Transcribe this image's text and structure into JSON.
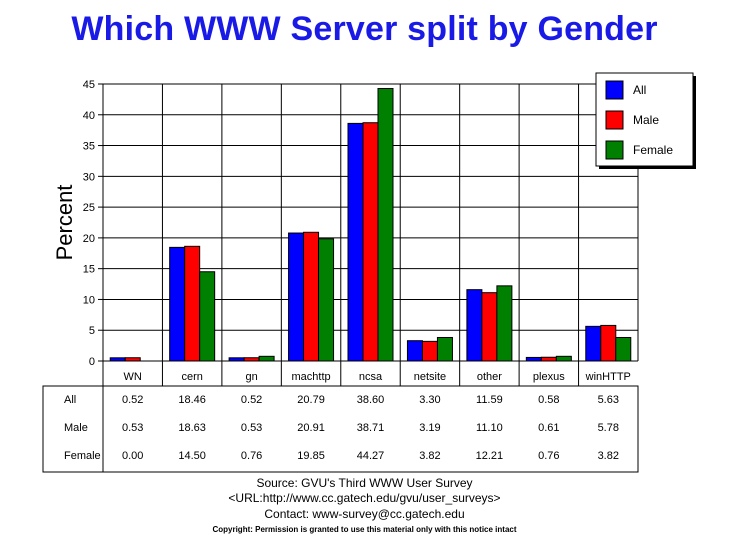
{
  "title": "Which WWW Server split by Gender",
  "chart_data": {
    "type": "bar",
    "title": "Which WWW Server split by Gender",
    "xlabel": "",
    "ylabel": "Percent",
    "ylim": [
      0,
      45
    ],
    "yticks": [
      0,
      5,
      10,
      15,
      20,
      25,
      30,
      35,
      40,
      45
    ],
    "grid": true,
    "legend_position": "top-right",
    "categories": [
      "WN",
      "cern",
      "gn",
      "machttp",
      "ncsa",
      "netsite",
      "other",
      "plexus",
      "winHTTP"
    ],
    "series": [
      {
        "name": "All",
        "color": "#0000ff",
        "values": [
          0.52,
          18.46,
          0.52,
          20.79,
          38.6,
          3.3,
          11.59,
          0.58,
          5.63
        ],
        "labels": [
          "0.52",
          "18.46",
          "0.52",
          "20.79",
          "38.60",
          "3.30",
          "11.59",
          "0.58",
          "5.63"
        ]
      },
      {
        "name": "Male",
        "color": "#ff0000",
        "values": [
          0.53,
          18.63,
          0.53,
          20.91,
          38.71,
          3.19,
          11.1,
          0.61,
          5.78
        ],
        "labels": [
          "0.53",
          "18.63",
          "0.53",
          "20.91",
          "38.71",
          "3.19",
          "11.10",
          "0.61",
          "5.78"
        ]
      },
      {
        "name": "Female",
        "color": "#008000",
        "values": [
          0.0,
          14.5,
          0.76,
          19.85,
          44.27,
          3.82,
          12.21,
          0.76,
          3.82
        ],
        "labels": [
          "0.00",
          "14.50",
          "0.76",
          "19.85",
          "44.27",
          "3.82",
          "12.21",
          "0.76",
          "3.82"
        ]
      }
    ]
  },
  "footer": {
    "source": "Source: GVU's Third WWW User Survey",
    "url": "<URL:http://www.cc.gatech.edu/gvu/user_surveys>",
    "contact": "Contact: www-survey@cc.gatech.edu",
    "copyright": "Copyright: Permission is granted to use this material only with this notice intact"
  }
}
